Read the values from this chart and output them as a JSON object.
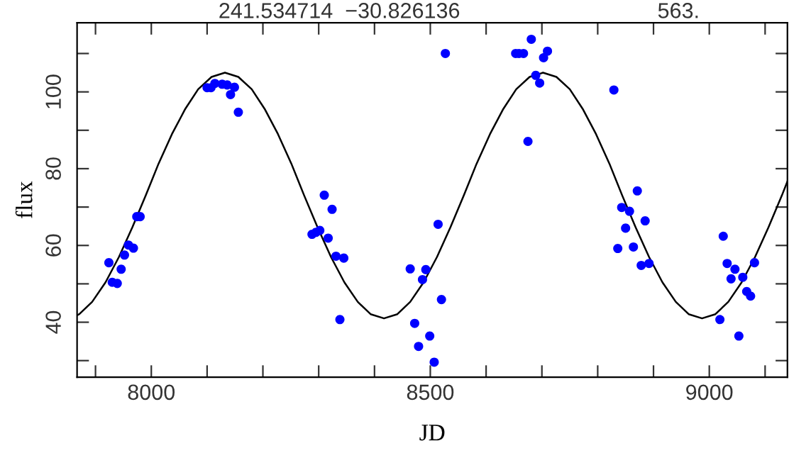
{
  "chart_data": {
    "type": "scatter",
    "xlabel": "JD",
    "ylabel": "flux",
    "annotations": [
      "241.534714  −30.826136",
      "563."
    ],
    "xlim": [
      7867,
      9140
    ],
    "ylim": [
      25.7,
      118
    ],
    "xticks": [
      {
        "value": 7900,
        "label": null
      },
      8000,
      {
        "value": 8100,
        "label": null
      },
      {
        "value": 8200,
        "label": null
      },
      {
        "value": 8300,
        "label": null
      },
      {
        "value": 8400,
        "label": null
      },
      8500,
      {
        "value": 8600,
        "label": null
      },
      {
        "value": 8700,
        "label": null
      },
      {
        "value": 8800,
        "label": null
      },
      {
        "value": 8900,
        "label": null
      },
      9000,
      {
        "value": 9100,
        "label": null
      }
    ],
    "yticks": [
      {
        "value": 30,
        "label": null
      },
      40,
      {
        "value": 50,
        "label": null
      },
      60,
      {
        "value": 70,
        "label": null
      },
      80,
      {
        "value": 90,
        "label": null
      },
      100,
      {
        "value": 110,
        "label": null
      }
    ],
    "grid": false,
    "marker": "circle",
    "series": [
      {
        "color": "#0000ff",
        "x": [
          7924,
          7930,
          7939,
          7946,
          7952,
          7959,
          7968,
          7974,
          7980,
          8100,
          8107,
          8114,
          8127,
          8136,
          8142,
          8149,
          8156,
          8288,
          8295,
          8302,
          8310,
          8317,
          8324,
          8331,
          8338,
          8345,
          8464,
          8472,
          8479,
          8486,
          8492,
          8499,
          8507,
          8514,
          8520,
          8527,
          8653,
          8659,
          8667,
          8675,
          8681,
          8689,
          8696,
          8703,
          8710,
          8829,
          8836,
          8843,
          8850,
          8857,
          8864,
          8871,
          8878,
          8885,
          8892,
          9019,
          9025,
          9032,
          9039,
          9046,
          9053,
          9060,
          9067,
          9074,
          9081
        ],
        "values": [
          55.5,
          50.4,
          50.1,
          53.8,
          57.5,
          60.1,
          59.3,
          67.5,
          67.5,
          101.1,
          101.1,
          102.2,
          102,
          101.8,
          99.3,
          101.2,
          94.7,
          62.9,
          63.4,
          63.9,
          73.1,
          61.9,
          69.4,
          57.2,
          40.7,
          56.7,
          53.9,
          39.7,
          33.7,
          51.1,
          53.7,
          36.4,
          29.6,
          65.5,
          45.9,
          110,
          110,
          110,
          110,
          87.1,
          113.7,
          104.3,
          102.3,
          108.9,
          110.6,
          100.5,
          59.2,
          69.9,
          64.5,
          68.9,
          59.6,
          74.2,
          54.8,
          66.4,
          55.3,
          40.7,
          62.4,
          55.3,
          51.3,
          53.8,
          36.4,
          51.7,
          48,
          46.8,
          55.5
        ]
      },
      {
        "type": "line",
        "color": "#000000",
        "marker": "none",
        "line_style": "solid",
        "x": [
          7867,
          7871,
          7894,
          7918,
          7942,
          7966,
          7990,
          8013,
          8037,
          8061,
          8084,
          8108,
          8132,
          8156,
          8180,
          8203,
          8227,
          8251,
          8274,
          8298,
          8322,
          8346,
          8370,
          8393,
          8417,
          8441,
          8464,
          8488,
          8512,
          8536,
          8560,
          8583,
          8607,
          8631,
          8654,
          8678,
          8702,
          8726,
          8750,
          8773,
          8797,
          8821,
          8844,
          8868,
          8892,
          8916,
          8940,
          8963,
          8987,
          9011,
          9034,
          9058,
          9082,
          9106,
          9130,
          9140
        ],
        "values": [
          41.8,
          42.1,
          45.3,
          50.4,
          57,
          64.7,
          73,
          81.3,
          89,
          95.6,
          100.7,
          103.9,
          105,
          103.9,
          100.7,
          95.6,
          89,
          81.3,
          73,
          64.7,
          57,
          50.4,
          45.3,
          42.1,
          41,
          42.1,
          45.3,
          50.4,
          57,
          64.7,
          73,
          81.3,
          89,
          95.6,
          100.7,
          103.9,
          105,
          103.9,
          100.7,
          95.6,
          89,
          81.3,
          73,
          64.7,
          57,
          50.4,
          45.3,
          42.1,
          41,
          42.1,
          45.3,
          50.4,
          57,
          64.7,
          73,
          76.7
        ]
      }
    ]
  }
}
